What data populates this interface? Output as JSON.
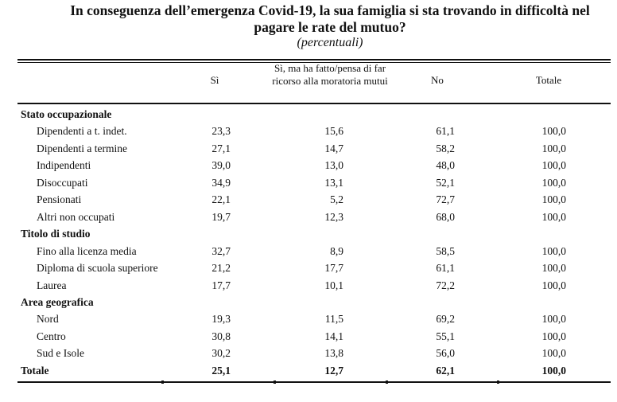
{
  "title": {
    "line1": "In conseguenza dell’emergenza Covid-19, la sua famiglia si sta trovando in difficoltà nel",
    "line2": "pagare le rate del mutuo?",
    "subtitle": "(percentuali)"
  },
  "columns": [
    "Sì",
    "Sì, ma ha fatto/pensa di far ricorso alla moratoria mutui",
    "No",
    "Totale"
  ],
  "rows": [
    {
      "type": "category",
      "label": "Stato occupazionale"
    },
    {
      "type": "item",
      "label": "Dipendenti a t. indet.",
      "values": [
        "23,3",
        "15,6",
        "61,1",
        "100,0"
      ]
    },
    {
      "type": "item",
      "label": "Dipendenti a termine",
      "values": [
        "27,1",
        "14,7",
        "58,2",
        "100,0"
      ]
    },
    {
      "type": "item",
      "label": "Indipendenti",
      "values": [
        "39,0",
        "13,0",
        "48,0",
        "100,0"
      ]
    },
    {
      "type": "item",
      "label": "Disoccupati",
      "values": [
        "34,9",
        "13,1",
        "52,1",
        "100,0"
      ]
    },
    {
      "type": "item",
      "label": "Pensionati",
      "values": [
        "22,1",
        "5,2",
        "72,7",
        "100,0"
      ]
    },
    {
      "type": "item",
      "label": "Altri non occupati",
      "values": [
        "19,7",
        "12,3",
        "68,0",
        "100,0"
      ]
    },
    {
      "type": "category",
      "label": "Titolo di studio"
    },
    {
      "type": "item",
      "label": "Fino alla licenza media",
      "values": [
        "32,7",
        "8,9",
        "58,5",
        "100,0"
      ]
    },
    {
      "type": "item",
      "label": "Diploma di scuola superiore",
      "values": [
        "21,2",
        "17,7",
        "61,1",
        "100,0"
      ]
    },
    {
      "type": "item",
      "label": "Laurea",
      "values": [
        "17,7",
        "10,1",
        "72,2",
        "100,0"
      ]
    },
    {
      "type": "category",
      "label": "Area geografica"
    },
    {
      "type": "item",
      "label": "Nord",
      "values": [
        "19,3",
        "11,5",
        "69,2",
        "100,0"
      ]
    },
    {
      "type": "item",
      "label": "Centro",
      "values": [
        "30,8",
        "14,1",
        "55,1",
        "100,0"
      ]
    },
    {
      "type": "item",
      "label": "Sud e Isole",
      "values": [
        "30,2",
        "13,8",
        "56,0",
        "100,0"
      ]
    },
    {
      "type": "total",
      "label": "Totale",
      "values": [
        "25,1",
        "12,7",
        "62,1",
        "100,0"
      ]
    }
  ]
}
